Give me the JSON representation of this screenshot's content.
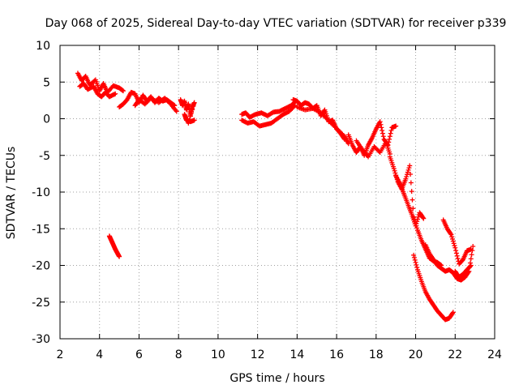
{
  "chart_data": {
    "type": "scatter",
    "title": "Day 068 of 2025, Sidereal Day-to-day VTEC variation (SDTVAR) for receiver p339",
    "xlabel": "GPS time / hours",
    "ylabel": "SDTVAR / TECUs",
    "xlim": [
      2,
      24
    ],
    "ylim": [
      -30,
      10
    ],
    "xticks": [
      2,
      4,
      6,
      8,
      10,
      12,
      14,
      16,
      18,
      20,
      22,
      24
    ],
    "yticks": [
      -30,
      -25,
      -20,
      -15,
      -10,
      -5,
      0,
      5,
      10
    ],
    "grid": true,
    "marker": "+",
    "color": "#ff0000",
    "series": [
      {
        "name": "SDTVAR",
        "tracks": [
          {
            "x": [
              2.9,
              3.1,
              3.3,
              3.5,
              3.8,
              4.0,
              4.2,
              4.4,
              4.7,
              5.0,
              5.2
            ],
            "y": [
              6.2,
              5.2,
              5.8,
              4.6,
              5.3,
              3.8,
              4.8,
              3.6,
              4.5,
              4.2,
              3.8
            ]
          },
          {
            "x": [
              3.0,
              3.2,
              3.4,
              3.7,
              3.9,
              4.1,
              4.3,
              4.5,
              4.8
            ],
            "y": [
              4.4,
              4.8,
              4.0,
              4.4,
              3.4,
              3.0,
              3.6,
              3.0,
              3.4
            ]
          },
          {
            "x": [
              5.0,
              5.2,
              5.4,
              5.6,
              5.8,
              6.0,
              6.2,
              6.4,
              6.6,
              6.8,
              7.0,
              7.2,
              7.4,
              7.6,
              7.8
            ],
            "y": [
              1.6,
              2.0,
              2.6,
              3.6,
              3.4,
              2.2,
              3.2,
              2.4,
              3.0,
              2.2,
              2.8,
              2.4,
              2.6,
              2.2,
              1.8
            ]
          },
          {
            "x": [
              5.8,
              6.0,
              6.3,
              6.6,
              7.0,
              7.3,
              7.6,
              7.9
            ],
            "y": [
              1.8,
              2.6,
              2.0,
              2.8,
              2.2,
              2.8,
              2.0,
              1.0
            ]
          },
          {
            "x": [
              8.1,
              8.2,
              8.3,
              8.4,
              8.5,
              8.6,
              8.7,
              8.8,
              8.5,
              8.3,
              8.4,
              8.6,
              8.8
            ],
            "y": [
              2.6,
              1.8,
              2.4,
              1.2,
              2.0,
              0.4,
              1.6,
              2.2,
              -0.6,
              0.6,
              -0.2,
              -0.4,
              -0.2
            ]
          },
          {
            "x": [
              4.5,
              4.6,
              4.7,
              4.8,
              4.9,
              5.0
            ],
            "y": [
              -16.0,
              -16.6,
              -17.2,
              -17.8,
              -18.3,
              -18.8
            ]
          },
          {
            "x": [
              11.2,
              11.4,
              11.6,
              11.9,
              12.2,
              12.5,
              12.8,
              13.1,
              13.4,
              13.7,
              13.9
            ],
            "y": [
              0.6,
              0.8,
              0.2,
              0.6,
              0.8,
              0.4,
              0.9,
              1.0,
              1.4,
              1.8,
              2.3
            ]
          },
          {
            "x": [
              11.2,
              11.5,
              11.8,
              12.1,
              12.4,
              12.7,
              13.0,
              13.3,
              13.6,
              13.9
            ],
            "y": [
              -0.2,
              -0.6,
              -0.4,
              -1.0,
              -0.8,
              -0.6,
              0.0,
              0.6,
              1.0,
              1.8
            ]
          },
          {
            "x": [
              13.8,
              14.0,
              14.2,
              14.4,
              14.6,
              14.8,
              15.0,
              15.2,
              15.4,
              15.6,
              15.8,
              16.0,
              16.2,
              16.4
            ],
            "y": [
              2.6,
              2.4,
              1.8,
              2.2,
              2.0,
              1.4,
              1.8,
              0.4,
              1.2,
              -0.4,
              -0.2,
              -1.4,
              -2.0,
              -2.8
            ]
          },
          {
            "x": [
              14.0,
              14.4,
              14.8,
              15.2,
              15.5,
              15.8,
              16.1,
              16.4,
              16.6
            ],
            "y": [
              1.6,
              1.2,
              1.4,
              0.8,
              0.0,
              -0.8,
              -1.6,
              -2.4,
              -3.4
            ]
          },
          {
            "x": [
              16.6,
              16.8,
              17.0,
              17.2,
              17.4,
              17.6,
              17.8,
              18.0,
              18.2,
              18.4,
              18.6,
              18.8,
              19.0
            ],
            "y": [
              -2.2,
              -3.6,
              -4.6,
              -3.8,
              -5.0,
              -3.6,
              -2.6,
              -1.4,
              -0.4,
              -2.8,
              -3.6,
              -1.2,
              -1.0
            ]
          },
          {
            "x": [
              17.0,
              17.3,
              17.6,
              17.9,
              18.2,
              18.5,
              18.7
            ],
            "y": [
              -3.0,
              -4.2,
              -5.2,
              -3.8,
              -4.6,
              -3.2,
              -4.8
            ]
          },
          {
            "x": [
              18.7,
              18.9,
              19.1,
              19.3,
              19.5,
              19.7,
              19.9,
              20.1,
              20.3,
              20.5,
              20.7,
              20.9,
              21.1,
              21.3
            ],
            "y": [
              -5.2,
              -6.8,
              -8.6,
              -9.6,
              -8.2,
              -6.4,
              -13.4,
              -15.2,
              -16.6,
              -17.8,
              -19.0,
              -19.4,
              -19.6,
              -20.0
            ]
          },
          {
            "x": [
              19.0,
              19.2,
              19.4,
              19.6,
              19.8,
              20.0,
              20.2,
              20.4
            ],
            "y": [
              -7.8,
              -8.8,
              -10.2,
              -11.6,
              -13.0,
              -14.6,
              -12.8,
              -13.6
            ]
          },
          {
            "x": [
              19.9,
              20.1,
              20.3,
              20.5,
              20.7,
              20.9,
              21.1,
              21.3,
              21.5,
              21.7,
              21.9
            ],
            "y": [
              -18.6,
              -20.6,
              -22.2,
              -23.6,
              -24.6,
              -25.4,
              -26.2,
              -26.8,
              -27.4,
              -27.2,
              -26.4
            ]
          },
          {
            "x": [
              20.5,
              20.7,
              20.9,
              21.1,
              21.3,
              21.5,
              21.7,
              21.9,
              22.1,
              22.3,
              22.5,
              22.7,
              22.9
            ],
            "y": [
              -17.2,
              -18.4,
              -19.2,
              -20.0,
              -20.4,
              -20.8,
              -20.6,
              -21.0,
              -21.8,
              -22.0,
              -21.6,
              -20.8,
              -17.4
            ]
          },
          {
            "x": [
              21.4,
              21.6,
              21.8,
              22.0,
              22.2,
              22.4,
              22.6,
              22.8
            ],
            "y": [
              -13.8,
              -15.0,
              -15.8,
              -17.6,
              -19.8,
              -19.2,
              -18.0,
              -17.8
            ]
          },
          {
            "x": [
              22.0,
              22.2,
              22.4,
              22.6,
              22.8
            ],
            "y": [
              -20.8,
              -21.6,
              -21.2,
              -20.6,
              -20.0
            ]
          }
        ]
      }
    ]
  }
}
